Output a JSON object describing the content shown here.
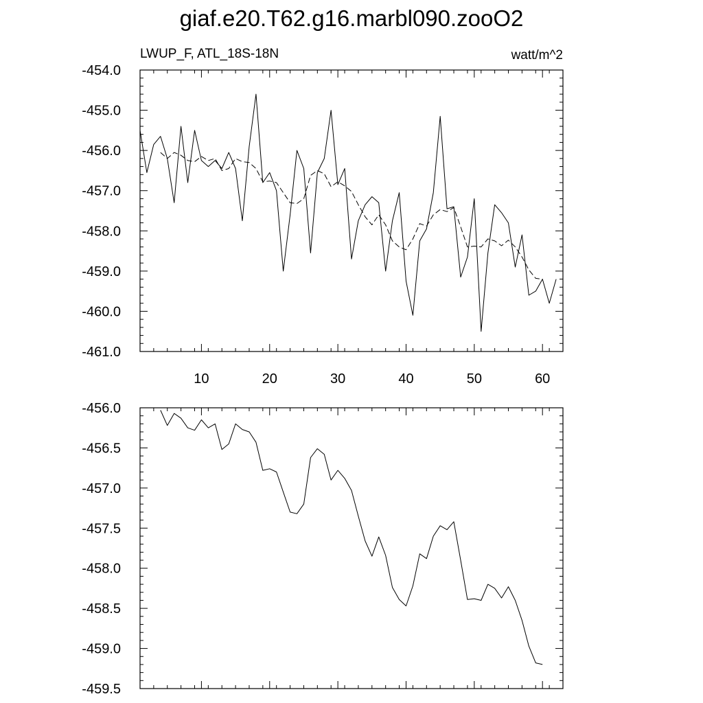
{
  "figure": {
    "title": "giaf.e20.T62.g16.marbl090.zooO2",
    "left_subtitle": "LWUP_F, ATL_18S-18N",
    "right_subtitle": "watt/m^2"
  },
  "chart_data": [
    {
      "type": "line",
      "title": "",
      "xlabel": "",
      "ylabel": "",
      "xlim": [
        1,
        63
      ],
      "ylim": [
        -461.0,
        -454.0
      ],
      "xticks": [
        10,
        20,
        30,
        40,
        50,
        60
      ],
      "xtick_labels": [
        "10",
        "20",
        "30",
        "40",
        "50",
        "60"
      ],
      "yticks": [
        -461.0,
        -460.0,
        -459.0,
        -458.0,
        -457.0,
        -456.0,
        -455.0,
        -454.0
      ],
      "ytick_labels": [
        "-461.0",
        "-460.0",
        "-459.0",
        "-458.0",
        "-457.0",
        "-456.0",
        "-455.0",
        "-454.0"
      ],
      "grid": false,
      "series": [
        {
          "style": "solid",
          "x": [
            1,
            2,
            3,
            4,
            5,
            6,
            7,
            8,
            9,
            10,
            11,
            12,
            13,
            14,
            15,
            16,
            17,
            18,
            19,
            20,
            21,
            22,
            23,
            24,
            25,
            26,
            27,
            28,
            29,
            30,
            31,
            32,
            33,
            34,
            35,
            36,
            37,
            38,
            39,
            40,
            41,
            42,
            43,
            44,
            45,
            46,
            47,
            48,
            49,
            50,
            51,
            52,
            53,
            54,
            55,
            56,
            57,
            58,
            59,
            60,
            61,
            62
          ],
          "values": [
            -455.5,
            -456.55,
            -455.85,
            -455.65,
            -456.2,
            -457.3,
            -455.4,
            -456.8,
            -455.5,
            -456.25,
            -456.4,
            -456.25,
            -456.45,
            -456.05,
            -456.45,
            -457.75,
            -455.9,
            -454.6,
            -456.8,
            -456.55,
            -457.0,
            -459.0,
            -457.6,
            -456.0,
            -456.45,
            -458.55,
            -456.55,
            -456.2,
            -455.0,
            -456.85,
            -456.45,
            -458.7,
            -457.75,
            -457.35,
            -457.15,
            -457.3,
            -459.0,
            -457.75,
            -457.05,
            -459.25,
            -460.1,
            -458.25,
            -457.95,
            -457.05,
            -455.15,
            -457.45,
            -457.4,
            -459.15,
            -458.65,
            -457.2,
            -460.5,
            -458.55,
            -457.35,
            -457.55,
            -457.8,
            -458.9,
            -458.1,
            -459.6,
            -459.5,
            -459.2,
            -459.8,
            -459.2
          ]
        },
        {
          "style": "dashed",
          "x": [
            4,
            5,
            6,
            7,
            8,
            9,
            10,
            11,
            12,
            13,
            14,
            15,
            16,
            17,
            18,
            19,
            20,
            21,
            22,
            23,
            24,
            25,
            26,
            27,
            28,
            29,
            30,
            31,
            32,
            33,
            34,
            35,
            36,
            37,
            38,
            39,
            40,
            41,
            42,
            43,
            44,
            45,
            46,
            47,
            48,
            49,
            50,
            51,
            52,
            53,
            54,
            55,
            56,
            57,
            58,
            59,
            60
          ],
          "values": [
            -456.05,
            -456.2,
            -456.05,
            -456.12,
            -456.25,
            -456.28,
            -456.15,
            -456.25,
            -456.2,
            -456.5,
            -456.45,
            -456.2,
            -456.28,
            -456.3,
            -456.45,
            -456.78,
            -456.76,
            -456.8,
            -457.05,
            -457.3,
            -457.32,
            -457.2,
            -456.62,
            -456.5,
            -456.58,
            -456.9,
            -456.78,
            -456.88,
            -457.02,
            -457.35,
            -457.65,
            -457.85,
            -457.6,
            -457.85,
            -458.25,
            -458.4,
            -458.47,
            -458.2,
            -457.82,
            -457.88,
            -457.6,
            -457.47,
            -457.52,
            -457.42,
            -457.9,
            -458.4,
            -458.38,
            -458.4,
            -458.2,
            -458.25,
            -458.37,
            -458.23,
            -458.4,
            -458.65,
            -458.97,
            -459.18,
            -459.2
          ]
        }
      ]
    },
    {
      "type": "line",
      "title": "",
      "xlabel": "",
      "ylabel": "",
      "xlim": [
        1,
        63
      ],
      "ylim": [
        -459.5,
        -456.0
      ],
      "xticks": [
        10,
        20,
        30,
        40,
        50,
        60
      ],
      "xtick_labels": [],
      "yticks": [
        -459.5,
        -459.0,
        -458.5,
        -458.0,
        -457.5,
        -457.0,
        -456.5,
        -456.0
      ],
      "ytick_labels": [
        "-459.5",
        "-459.0",
        "-458.5",
        "-458.0",
        "-457.5",
        "-457.0",
        "-456.5",
        "-456.0"
      ],
      "grid": false,
      "series": [
        {
          "style": "solid",
          "x": [
            4,
            5,
            6,
            7,
            8,
            9,
            10,
            11,
            12,
            13,
            14,
            15,
            16,
            17,
            18,
            19,
            20,
            21,
            22,
            23,
            24,
            25,
            26,
            27,
            28,
            29,
            30,
            31,
            32,
            33,
            34,
            35,
            36,
            37,
            38,
            39,
            40,
            41,
            42,
            43,
            44,
            45,
            46,
            47,
            48,
            49,
            50,
            51,
            52,
            53,
            54,
            55,
            56,
            57,
            58,
            59,
            60
          ],
          "values": [
            -456.03,
            -456.22,
            -456.07,
            -456.13,
            -456.25,
            -456.28,
            -456.15,
            -456.25,
            -456.2,
            -456.52,
            -456.45,
            -456.2,
            -456.27,
            -456.3,
            -456.43,
            -456.78,
            -456.76,
            -456.8,
            -457.05,
            -457.3,
            -457.32,
            -457.2,
            -456.62,
            -456.51,
            -456.58,
            -456.9,
            -456.78,
            -456.88,
            -457.03,
            -457.35,
            -457.66,
            -457.85,
            -457.61,
            -457.84,
            -458.24,
            -458.39,
            -458.47,
            -458.22,
            -457.82,
            -457.88,
            -457.6,
            -457.47,
            -457.52,
            -457.42,
            -457.9,
            -458.39,
            -458.38,
            -458.4,
            -458.2,
            -458.25,
            -458.37,
            -458.23,
            -458.4,
            -458.65,
            -458.97,
            -459.18,
            -459.2
          ]
        }
      ]
    }
  ]
}
